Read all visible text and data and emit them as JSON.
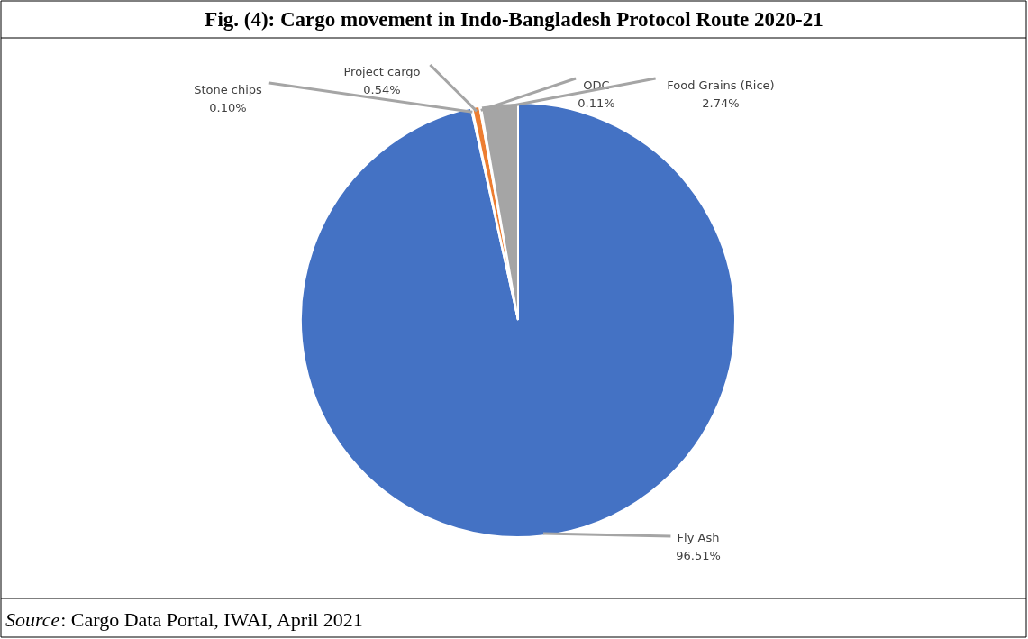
{
  "chart_data": {
    "type": "pie",
    "title": "Fig. (4): Cargo movement in Indo-Bangladesh Protocol Route 2020-21",
    "categories": [
      "Fly Ash",
      "Stone chips",
      "Project cargo",
      "ODC",
      "Food Grains (Rice)"
    ],
    "values": [
      96.51,
      0.1,
      0.54,
      0.11,
      2.74
    ],
    "value_labels": [
      "96.51%",
      "0.10%",
      "0.54%",
      "0.11%",
      "2.74%"
    ],
    "colors": [
      "#4472c4",
      "#ffc000",
      "#ed7d31",
      "#5b9bd5",
      "#a5a5a5"
    ],
    "annotations": [
      "Source: Cargo Data Portal, IWAI, April 2021"
    ]
  }
}
